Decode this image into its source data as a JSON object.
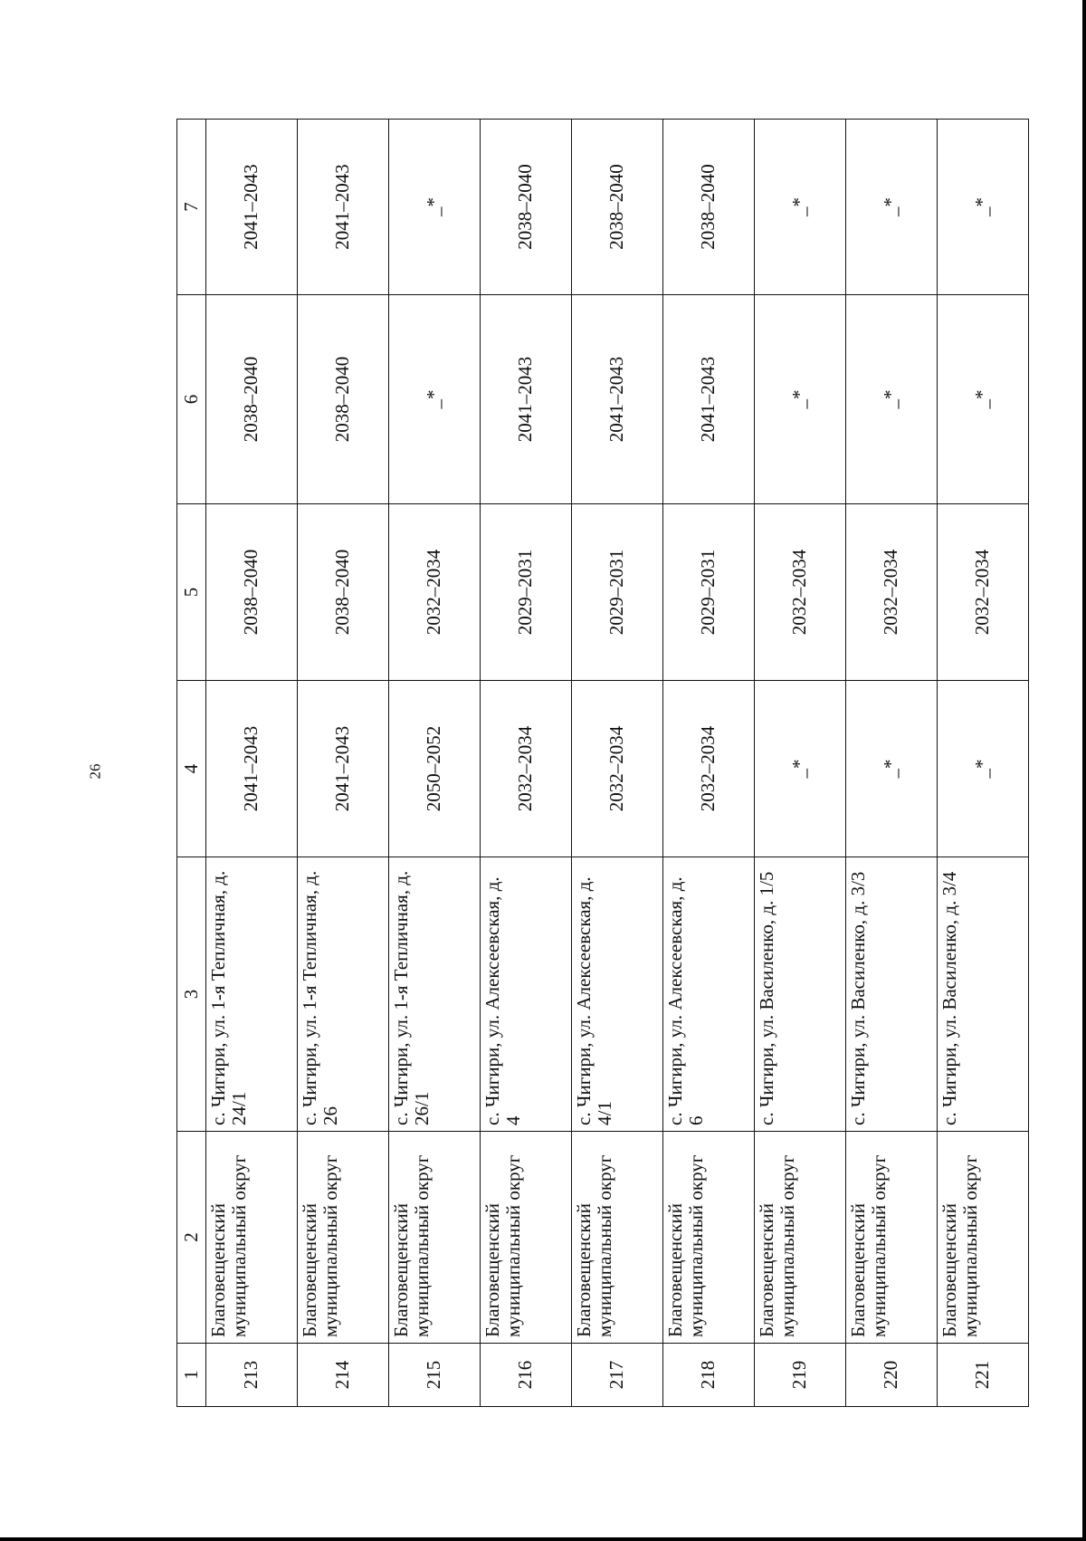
{
  "page_number": "26",
  "table": {
    "headers": [
      "1",
      "2",
      "3",
      "4",
      "5",
      "6",
      "7"
    ],
    "rows": [
      {
        "n": "213",
        "district": "Благовещенский муниципальный округ",
        "address": "с. Чигири, ул. 1-я Тепличная, д. 24/1",
        "c4": "2041–2043",
        "c5": "2038–2040",
        "c6": "2038–2040",
        "c7": "2041–2043"
      },
      {
        "n": "214",
        "district": "Благовещенский муниципальный округ",
        "address": "с. Чигири, ул. 1-я Тепличная, д. 26",
        "c4": "2041–2043",
        "c5": "2038–2040",
        "c6": "2038–2040",
        "c7": "2041–2043"
      },
      {
        "n": "215",
        "district": "Благовещенский муниципальный округ",
        "address": "с. Чигири, ул. 1-я Тепличная, д. 26/1",
        "c4": "2050–2052",
        "c5": "2032–2034",
        "c6": "_*",
        "c7": "_*"
      },
      {
        "n": "216",
        "district": "Благовещенский муниципальный округ",
        "address": "с. Чигири, ул. Алексеевская, д. 4",
        "c4": "2032–2034",
        "c5": "2029–2031",
        "c6": "2041–2043",
        "c7": "2038–2040"
      },
      {
        "n": "217",
        "district": "Благовещенский муниципальный округ",
        "address": "с. Чигири, ул. Алексеевская, д. 4/1",
        "c4": "2032–2034",
        "c5": "2029–2031",
        "c6": "2041–2043",
        "c7": "2038–2040"
      },
      {
        "n": "218",
        "district": "Благовещенский муниципальный округ",
        "address": "с. Чигири, ул. Алексеевская, д. 6",
        "c4": "2032–2034",
        "c5": "2029–2031",
        "c6": "2041–2043",
        "c7": "2038–2040"
      },
      {
        "n": "219",
        "district": "Благовещенский муниципальный округ",
        "address": "с. Чигири, ул. Василенко, д. 1/5",
        "c4": "_*",
        "c5": "2032–2034",
        "c6": "_*",
        "c7": "_*"
      },
      {
        "n": "220",
        "district": "Благовещенский муниципальный округ",
        "address": "с. Чигири, ул. Василенко, д. 3/3",
        "c4": "_*",
        "c5": "2032–2034",
        "c6": "_*",
        "c7": "_*"
      },
      {
        "n": "221",
        "district": "Благовещенский муниципальный округ",
        "address": "с. Чигири, ул. Василенко, д. 3/4",
        "c4": "_*",
        "c5": "2032–2034",
        "c6": "_*",
        "c7": "_*"
      }
    ]
  }
}
